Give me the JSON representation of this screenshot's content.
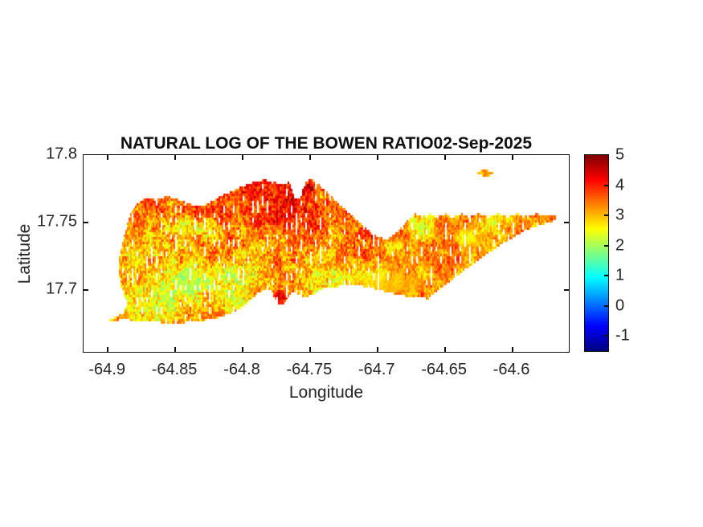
{
  "chart_data": {
    "type": "heatmap",
    "title": "NATURAL LOG OF THE BOWEN RATIO",
    "date": "02-Sep-2025",
    "xlabel": "Longitude",
    "ylabel": "Latitude",
    "xlim": [
      -64.918,
      -64.558
    ],
    "ylim": [
      17.654,
      17.8
    ],
    "xticks": [
      -64.9,
      -64.85,
      -64.8,
      -64.75,
      -64.7,
      -64.65,
      -64.6
    ],
    "xtick_labels": [
      "-64.9",
      "-64.85",
      "-64.8",
      "-64.75",
      "-64.7",
      "-64.65",
      "-64.6"
    ],
    "yticks": [
      17.8,
      17.75,
      17.7
    ],
    "ytick_labels": [
      "17.8",
      "17.75",
      "17.7"
    ],
    "grid": false,
    "colorbar": {
      "colormap": "jet",
      "caxis": [
        -1.5,
        5
      ],
      "ticks": [
        5,
        4,
        3,
        2,
        1,
        0,
        -1
      ],
      "labels": [
        "5",
        "4",
        "3",
        "2",
        "1",
        "0",
        "-1"
      ],
      "position": "right"
    },
    "island_outline_lonlat": [
      [
        -64.9019,
        17.6759
      ],
      [
        -64.8936,
        17.68
      ],
      [
        -64.8877,
        17.6847
      ],
      [
        -64.8853,
        17.6894
      ],
      [
        -64.8877,
        17.6953
      ],
      [
        -64.8906,
        17.7041
      ],
      [
        -64.8918,
        17.7141
      ],
      [
        -64.8912,
        17.7247
      ],
      [
        -64.8888,
        17.7353
      ],
      [
        -64.8865,
        17.7447
      ],
      [
        -64.8841,
        17.7541
      ],
      [
        -64.8805,
        17.7612
      ],
      [
        -64.8758,
        17.7659
      ],
      [
        -64.8704,
        17.7682
      ],
      [
        -64.8639,
        17.7665
      ],
      [
        -64.8567,
        17.7694
      ],
      [
        -64.8496,
        17.7676
      ],
      [
        -64.8424,
        17.7653
      ],
      [
        -64.8353,
        17.7624
      ],
      [
        -64.8293,
        17.7624
      ],
      [
        -64.8234,
        17.7653
      ],
      [
        -64.8162,
        17.7694
      ],
      [
        -64.8085,
        17.7729
      ],
      [
        -64.8008,
        17.7765
      ],
      [
        -64.7924,
        17.7794
      ],
      [
        -64.7841,
        17.7818
      ],
      [
        -64.777,
        17.78
      ],
      [
        -64.7704,
        17.7782
      ],
      [
        -64.7657,
        17.78
      ],
      [
        -64.7633,
        17.7741
      ],
      [
        -64.7615,
        17.7682
      ],
      [
        -64.7579,
        17.7676
      ],
      [
        -64.7556,
        17.7735
      ],
      [
        -64.7532,
        17.7794
      ],
      [
        -64.7496,
        17.7824
      ],
      [
        -64.746,
        17.78
      ],
      [
        -64.7407,
        17.7753
      ],
      [
        -64.7347,
        17.77
      ],
      [
        -64.7282,
        17.7635
      ],
      [
        -64.7216,
        17.7576
      ],
      [
        -64.7151,
        17.7518
      ],
      [
        -64.7091,
        17.7459
      ],
      [
        -64.7032,
        17.7412
      ],
      [
        -64.6984,
        17.7388
      ],
      [
        -64.6937,
        17.7376
      ],
      [
        -64.6895,
        17.7394
      ],
      [
        -64.6859,
        17.7424
      ],
      [
        -64.6824,
        17.7459
      ],
      [
        -64.6788,
        17.75
      ],
      [
        -64.6752,
        17.7535
      ],
      [
        -64.6717,
        17.7565
      ],
      [
        -64.6675,
        17.7541
      ],
      [
        -64.6615,
        17.7565
      ],
      [
        -64.6556,
        17.7541
      ],
      [
        -64.6496,
        17.7565
      ],
      [
        -64.6437,
        17.7541
      ],
      [
        -64.6377,
        17.7565
      ],
      [
        -64.6318,
        17.7541
      ],
      [
        -64.6246,
        17.7565
      ],
      [
        -64.6175,
        17.7541
      ],
      [
        -64.6103,
        17.7565
      ],
      [
        -64.6032,
        17.7541
      ],
      [
        -64.5961,
        17.7565
      ],
      [
        -64.5889,
        17.7547
      ],
      [
        -64.5818,
        17.7565
      ],
      [
        -64.5758,
        17.7553
      ],
      [
        -64.5711,
        17.7553
      ],
      [
        -64.5657,
        17.7541
      ],
      [
        -64.5699,
        17.7506
      ],
      [
        -64.577,
        17.7488
      ],
      [
        -64.5842,
        17.7465
      ],
      [
        -64.5913,
        17.7435
      ],
      [
        -64.5984,
        17.7394
      ],
      [
        -64.6056,
        17.7353
      ],
      [
        -64.6127,
        17.7306
      ],
      [
        -64.6199,
        17.7259
      ],
      [
        -64.627,
        17.7206
      ],
      [
        -64.6341,
        17.7153
      ],
      [
        -64.6413,
        17.71
      ],
      [
        -64.6484,
        17.7047
      ],
      [
        -64.6556,
        17.6994
      ],
      [
        -64.6603,
        17.6959
      ],
      [
        -64.6621,
        17.6935
      ],
      [
        -64.6687,
        17.6941
      ],
      [
        -64.6758,
        17.6947
      ],
      [
        -64.6829,
        17.6959
      ],
      [
        -64.6901,
        17.6976
      ],
      [
        -64.6972,
        17.6994
      ],
      [
        -64.7044,
        17.7012
      ],
      [
        -64.7115,
        17.7029
      ],
      [
        -64.7175,
        17.7035
      ],
      [
        -64.7234,
        17.7029
      ],
      [
        -64.7294,
        17.7024
      ],
      [
        -64.7341,
        17.7012
      ],
      [
        -64.7389,
        17.7018
      ],
      [
        -64.7425,
        17.7
      ],
      [
        -64.746,
        17.6976
      ],
      [
        -64.7508,
        17.6953
      ],
      [
        -64.7556,
        17.6947
      ],
      [
        -64.7591,
        17.6965
      ],
      [
        -64.7615,
        17.6988
      ],
      [
        -64.7645,
        17.6971
      ],
      [
        -64.7669,
        17.6935
      ],
      [
        -64.7699,
        17.6894
      ],
      [
        -64.7734,
        17.6888
      ],
      [
        -64.7758,
        17.6924
      ],
      [
        -64.7776,
        17.6971
      ],
      [
        -64.7794,
        17.7
      ],
      [
        -64.7829,
        17.7006
      ],
      [
        -64.7877,
        17.6982
      ],
      [
        -64.7924,
        17.6941
      ],
      [
        -64.7972,
        17.6894
      ],
      [
        -64.802,
        17.6859
      ],
      [
        -64.8079,
        17.6829
      ],
      [
        -64.8139,
        17.6806
      ],
      [
        -64.8198,
        17.6788
      ],
      [
        -64.827,
        17.6776
      ],
      [
        -64.8341,
        17.6765
      ],
      [
        -64.8412,
        17.6759
      ],
      [
        -64.8484,
        17.6753
      ],
      [
        -64.8555,
        17.6753
      ],
      [
        -64.8627,
        17.6759
      ],
      [
        -64.8698,
        17.6765
      ],
      [
        -64.877,
        17.6771
      ],
      [
        -64.8841,
        17.6776
      ],
      [
        -64.8912,
        17.6776
      ],
      [
        -64.8971,
        17.6771
      ]
    ],
    "islet_outline_lonlat": [
      [
        -64.627,
        17.7871
      ],
      [
        -64.6234,
        17.7888
      ],
      [
        -64.6187,
        17.7888
      ],
      [
        -64.6145,
        17.7871
      ],
      [
        -64.6121,
        17.7859
      ],
      [
        -64.6163,
        17.7847
      ],
      [
        -64.6217,
        17.7847
      ],
      [
        -64.6252,
        17.7859
      ]
    ],
    "value_field": {
      "base": 3.08,
      "clamp": [
        1.73,
        4.87
      ],
      "north_south_gradient": 0.6,
      "smooth_noise": [
        {
          "scale": 30,
          "amp": 0.45
        },
        {
          "scale": 10,
          "amp": 0.4
        }
      ],
      "speckle_amp": 1.15,
      "streak_amp": 0.5,
      "patches": [
        {
          "kind": "add",
          "lon": -64.765,
          "lat": 17.76,
          "rlon": 0.045,
          "rlat": 0.03,
          "amount": 0.5
        },
        {
          "kind": "add",
          "lon": -64.783,
          "lat": 17.766,
          "rlon": 0.1,
          "rlat": 0.03,
          "amount": 0.25
        },
        {
          "kind": "add",
          "lon": -64.712,
          "lat": 17.734,
          "rlon": 0.022,
          "rlat": 0.018,
          "amount": 0.35
        },
        {
          "kind": "add",
          "lon": -64.854,
          "lat": 17.698,
          "rlon": 0.05,
          "rlat": 0.025,
          "amount": -0.35
        },
        {
          "kind": "add",
          "lon": -64.807,
          "lat": 17.707,
          "rlon": 0.04,
          "rlat": 0.02,
          "amount": -0.2
        },
        {
          "kind": "add",
          "lon": -64.771,
          "lat": 17.694,
          "rlon": 0.007,
          "rlat": 0.007,
          "amount": 0.9
        },
        {
          "kind": "blend",
          "lon": -64.694,
          "lat": 17.704,
          "rlon": 0.033,
          "rlat": 0.011,
          "target": 2.95,
          "strength": 0.8
        },
        {
          "kind": "blend",
          "lon": -64.632,
          "lat": 17.739,
          "rlon": 0.013,
          "rlat": 0.009,
          "target": 2.2,
          "strength": 0.55
        }
      ]
    }
  }
}
